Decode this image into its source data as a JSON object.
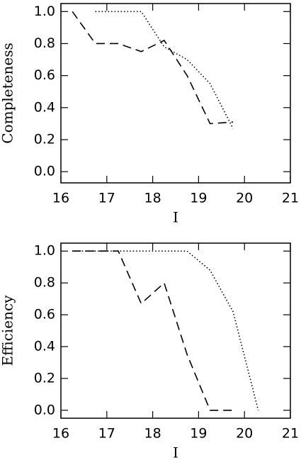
{
  "chart_data": [
    {
      "type": "line",
      "xlabel": "I",
      "ylabel": "Completeness",
      "xlim": [
        16,
        21
      ],
      "xticks": [
        16,
        17,
        18,
        19,
        20,
        21
      ],
      "ylim": [
        -0.07,
        1.05
      ],
      "yticks": [
        {
          "value": 0,
          "label": "0.0"
        },
        {
          "value": 0.2,
          "label": "0.2"
        },
        {
          "value": 0.4,
          "label": "0.4"
        },
        {
          "value": 0.6,
          "label": "0.6"
        },
        {
          "value": 0.8,
          "label": "0.8"
        },
        {
          "value": 1,
          "label": "1.0"
        }
      ],
      "series": [
        {
          "color": "#000000",
          "dash": "dashed",
          "x": [
            16.25,
            16.75,
            17.25,
            17.75,
            18.25,
            18.75,
            19.25,
            19.75
          ],
          "values": [
            1.0,
            0.8,
            0.8,
            0.75,
            0.82,
            0.6,
            0.3,
            0.31
          ]
        },
        {
          "color": "#000000",
          "dash": "dotted",
          "x": [
            16.75,
            17.75,
            18.25,
            18.75,
            19.25,
            19.75
          ],
          "values": [
            1.0,
            1.0,
            0.78,
            0.7,
            0.55,
            0.27
          ]
        }
      ]
    },
    {
      "type": "line",
      "xlabel": "I",
      "ylabel": "Efficiency",
      "xlim": [
        16,
        21
      ],
      "xticks": [
        16,
        17,
        18,
        19,
        20,
        21
      ],
      "ylim": [
        -0.05,
        1.05
      ],
      "yticks": [
        {
          "value": 0,
          "label": "0.0"
        },
        {
          "value": 0.2,
          "label": "0.2"
        },
        {
          "value": 0.4,
          "label": "0.4"
        },
        {
          "value": 0.6,
          "label": "0.6"
        },
        {
          "value": 0.8,
          "label": "0.8"
        },
        {
          "value": 1,
          "label": "1.0"
        }
      ],
      "series": [
        {
          "color": "#000000",
          "dash": "dashed",
          "x": [
            16.25,
            16.75,
            17.25,
            17.75,
            18.25,
            18.75,
            19.25,
            19.75
          ],
          "values": [
            1.0,
            1.0,
            1.0,
            0.67,
            0.8,
            0.35,
            0.0,
            0.0
          ]
        },
        {
          "color": "#000000",
          "dash": "dotted",
          "x": [
            16.25,
            16.75,
            17.25,
            17.75,
            18.25,
            18.75,
            19.25,
            19.75,
            20.3
          ],
          "values": [
            1.0,
            1.0,
            1.0,
            1.0,
            1.0,
            1.0,
            0.88,
            0.62,
            0.0
          ]
        }
      ]
    }
  ]
}
